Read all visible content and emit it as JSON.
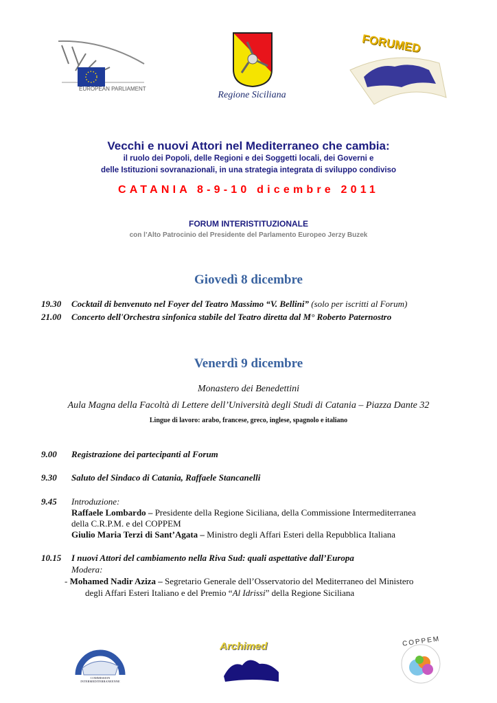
{
  "logos": {
    "european_parliament": "EUROPEAN PARLIAMENT",
    "regione": "Regione Siciliana",
    "forumed": "FORUMED",
    "commission": "COMMISSION INTERMEDITERRANEENNE",
    "archimed": "Archimed",
    "coppem": "COPPEM"
  },
  "header": {
    "title": "Vecchi e nuovi Attori nel Mediterraneo che cambia:",
    "subtitle_1": "il ruolo dei Popoli, delle Regioni e dei Soggetti locali, dei Governi e",
    "subtitle_2": "delle Istituzioni sovranazionali, in una strategia integrata di sviluppo condiviso",
    "place_date": "CATANIA 8-9-10 dicembre 2011",
    "forum": "FORUM INTERISTITUZIONALE",
    "patronage": "con l’Alto Patrocinio del Presidente del Parlamento Europeo Jerzy Buzek"
  },
  "colors": {
    "navy": "#1c1c80",
    "red": "#ff0000",
    "day": "#3a63a0",
    "gray": "#808080"
  },
  "thursday": {
    "title": "Giovedì 8 dicembre",
    "items": [
      {
        "time": "19.30",
        "text": "Cocktail di benvenuto nel Foyer del Teatro Massimo “V. Bellini”",
        "note": " (solo per iscritti al Forum)"
      },
      {
        "time": "21.00",
        "text": "Concerto dell'Orchestra sinfonica stabile del Teatro diretta dal M° Roberto Paternostro"
      }
    ]
  },
  "friday": {
    "title": "Venerdì 9 dicembre",
    "venue": "Monastero dei Benedettini",
    "room": "Aula Magna della Facoltà di Lettere dell’Università degli Studi di Catania – Piazza Dante 32",
    "languages": "Lingue di lavoro: arabo, francese, greco, inglese, spagnolo e italiano",
    "items": [
      {
        "time": "9.00",
        "text": "Registrazione dei partecipanti al Forum"
      },
      {
        "time": "9.30",
        "text": "Saluto del Sindaco di Catania, Raffaele Stancanelli"
      },
      {
        "time": "9.45",
        "text": "Introduzione:",
        "speakers": [
          {
            "name": "Raffaele Lombardo –",
            "role": " Presidente della Regione Siciliana, della Commissione Intermediterranea",
            "role_cont": "della C.R.P.M. e del COPPEM"
          },
          {
            "name": "Giulio Maria Terzi di Sant’Agata –",
            "role": " Ministro degli Affari Esteri della Repubblica Italiana"
          }
        ]
      },
      {
        "time": "10.15",
        "text": "I nuovi Attori del cambiamento nella Riva Sud: quali aspettative dall’Europa",
        "moderator_label": "Modera:",
        "moderator": {
          "dash": "- ",
          "name": "Mohamed Nadir Aziza –",
          "role": " Segretario Generale dell’Osservatorio del Mediterraneo del Ministero",
          "role_cont_1": "degli Affari Esteri Italiano e del Premio “",
          "award": "Al Idrissi",
          "role_cont_2": "” della Regione Siciliana"
        }
      }
    ]
  }
}
